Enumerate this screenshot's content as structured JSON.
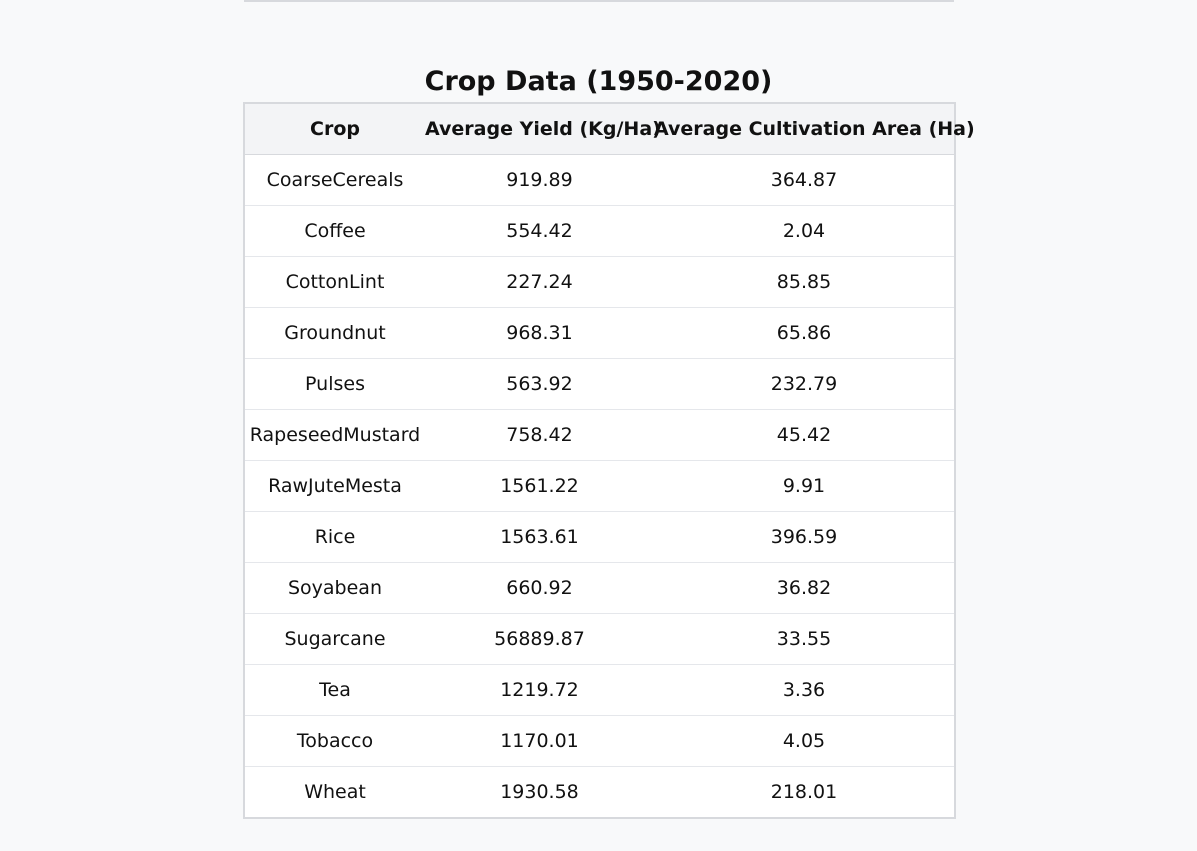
{
  "page": {
    "title": "Crop Data (1950-2020)"
  },
  "table": {
    "headers": [
      "Crop",
      "Average Yield (Kg/Ha)",
      "Average Cultivation Area (Ha)"
    ],
    "rows": [
      [
        "CoarseCereals",
        "919.89",
        "364.87"
      ],
      [
        "Coffee",
        "554.42",
        "2.04"
      ],
      [
        "CottonLint",
        "227.24",
        "85.85"
      ],
      [
        "Groundnut",
        "968.31",
        "65.86"
      ],
      [
        "Pulses",
        "563.92",
        "232.79"
      ],
      [
        "RapeseedMustard",
        "758.42",
        "45.42"
      ],
      [
        "RawJuteMesta",
        "1561.22",
        "9.91"
      ],
      [
        "Rice",
        "1563.61",
        "396.59"
      ],
      [
        "Soyabean",
        "660.92",
        "36.82"
      ],
      [
        "Sugarcane",
        "56889.87",
        "33.55"
      ],
      [
        "Tea",
        "1219.72",
        "3.36"
      ],
      [
        "Tobacco",
        "1170.01",
        "4.05"
      ],
      [
        "Wheat",
        "1930.58",
        "218.01"
      ]
    ]
  },
  "colors": {
    "background": "#f8f9fa",
    "header_bg": "#f3f4f6",
    "border": "#d7d9dd"
  }
}
